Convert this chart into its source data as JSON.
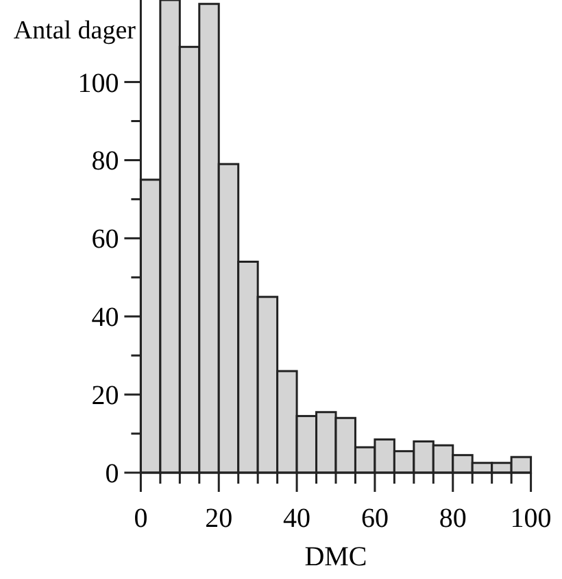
{
  "chart_data": {
    "type": "histogram",
    "ylabel": "Antal dager",
    "xlabel": "DMC",
    "bins": [
      0,
      5,
      10,
      15,
      20,
      25,
      30,
      35,
      40,
      45,
      50,
      55,
      60,
      65,
      70,
      75,
      80,
      85,
      90,
      95,
      100
    ],
    "values": [
      75,
      121,
      109,
      120,
      79,
      54,
      45,
      26,
      14.5,
      15.5,
      14,
      6.5,
      8.5,
      5.5,
      8,
      7,
      4.5,
      2.5,
      2.5,
      4
    ],
    "color": "#d4d4d4",
    "xlim": [
      0,
      100
    ],
    "ylim": [
      0,
      121
    ],
    "xticks": [
      0,
      {
        "value": 5,
        "label": null
      },
      {
        "value": 10,
        "label": null
      },
      {
        "value": 15,
        "label": null
      },
      20,
      {
        "value": 25,
        "label": null
      },
      {
        "value": 30,
        "label": null
      },
      {
        "value": 35,
        "label": null
      },
      40,
      {
        "value": 45,
        "label": null
      },
      {
        "value": 50,
        "label": null
      },
      {
        "value": 55,
        "label": null
      },
      60,
      {
        "value": 65,
        "label": null
      },
      {
        "value": 70,
        "label": null
      },
      {
        "value": 75,
        "label": null
      },
      80,
      {
        "value": 85,
        "label": null
      },
      {
        "value": 90,
        "label": null
      },
      {
        "value": 95,
        "label": null
      },
      100
    ],
    "yticks": [
      0,
      {
        "value": 10,
        "label": null
      },
      20,
      {
        "value": 30,
        "label": null
      },
      40,
      {
        "value": 50,
        "label": null
      },
      60,
      {
        "value": 70,
        "label": null
      },
      80,
      {
        "value": 90,
        "label": null
      },
      100
    ],
    "grid": false
  }
}
